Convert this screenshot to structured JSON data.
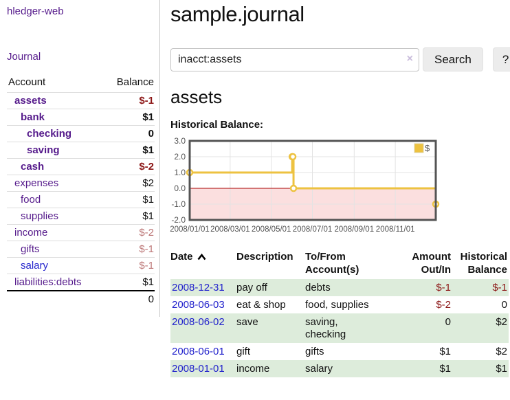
{
  "colors": {
    "link_purple": "#551a8b",
    "link_blue": "#2222cc",
    "negative_strong": "#8b1414",
    "negative_muted": "#bc7676",
    "row_green": "#ddecdb",
    "chart_line": "#edc240",
    "chart_negative_fill": "#fbdfdf",
    "chart_zero_line": "#aa0000"
  },
  "app": {
    "brand": "hledger-web",
    "nav_journal": "Journal"
  },
  "sidebar": {
    "table_headers": {
      "account": "Account",
      "balance": "Balance"
    },
    "accounts": [
      {
        "name": "assets",
        "balance": "$-1",
        "indent": 1
      },
      {
        "name": "bank",
        "balance": "$1",
        "indent": 2
      },
      {
        "name": "checking",
        "balance": "0",
        "indent": 3
      },
      {
        "name": "saving",
        "balance": "$1",
        "indent": 3
      },
      {
        "name": "cash",
        "balance": "$-2",
        "indent": 2
      },
      {
        "name": "expenses",
        "balance": "$2",
        "indent": 1
      },
      {
        "name": "food",
        "balance": "$1",
        "indent": 2
      },
      {
        "name": "supplies",
        "balance": "$1",
        "indent": 2
      },
      {
        "name": "income",
        "balance": "$-2",
        "indent": 1
      },
      {
        "name": "gifts",
        "balance": "$-1",
        "indent": 2
      },
      {
        "name": "salary",
        "balance": "$-1",
        "indent": 2
      },
      {
        "name": "liabilities:debts",
        "balance": "$1",
        "indent": 1
      }
    ],
    "total": "0"
  },
  "main": {
    "title": "sample.journal",
    "search": {
      "value": "inacct:assets",
      "clear_icon": "×",
      "button": "Search",
      "help_button": "?"
    },
    "account_heading": "assets",
    "chart_label": "Historical Balance:"
  },
  "chart_data": {
    "type": "line",
    "step": true,
    "title": "Historical Balance",
    "x_range": [
      "2008/01/01",
      "2008/12/31"
    ],
    "x_ticks": [
      "2008/01/01",
      "2008/03/01",
      "2008/05/01",
      "2008/07/01",
      "2008/09/01",
      "2008/11/01"
    ],
    "y_ticks": [
      3.0,
      2.0,
      1.0,
      0.0,
      -1.0,
      -2.0
    ],
    "ylim": [
      -2,
      3
    ],
    "grid": true,
    "negative_region_shaded": true,
    "legend": {
      "position": "top-right"
    },
    "series": [
      {
        "name": "$",
        "points": [
          [
            "2008/01/01",
            1
          ],
          [
            "2008/06/01",
            1
          ],
          [
            "2008/06/01",
            2
          ],
          [
            "2008/06/02",
            2
          ],
          [
            "2008/06/03",
            2
          ],
          [
            "2008/06/03",
            0
          ],
          [
            "2008/12/31",
            0
          ],
          [
            "2008/12/31",
            -1
          ]
        ],
        "markers": [
          [
            "2008/01/01",
            1
          ],
          [
            "2008/06/01",
            2
          ],
          [
            "2008/06/02",
            2
          ],
          [
            "2008/06/03",
            0
          ],
          [
            "2008/12/31",
            -1
          ]
        ]
      }
    ]
  },
  "register": {
    "columns": {
      "date": "Date",
      "description": "Description",
      "accounts": "To/From Account(s)",
      "amount": "Amount Out/In",
      "balance": "Historical Balance"
    },
    "rows": [
      {
        "date": "2008-12-31",
        "description": "pay off",
        "accounts": "debts",
        "amount": "$-1",
        "balance": "$-1"
      },
      {
        "date": "2008-06-03",
        "description": "eat & shop",
        "accounts": "food, supplies",
        "amount": "$-2",
        "balance": "0"
      },
      {
        "date": "2008-06-02",
        "description": "save",
        "accounts": "saving, checking",
        "amount": "0",
        "balance": "$2"
      },
      {
        "date": "2008-06-01",
        "description": "gift",
        "accounts": "gifts",
        "amount": "$1",
        "balance": "$2"
      },
      {
        "date": "2008-01-01",
        "description": "income",
        "accounts": "salary",
        "amount": "$1",
        "balance": "$1"
      }
    ]
  }
}
